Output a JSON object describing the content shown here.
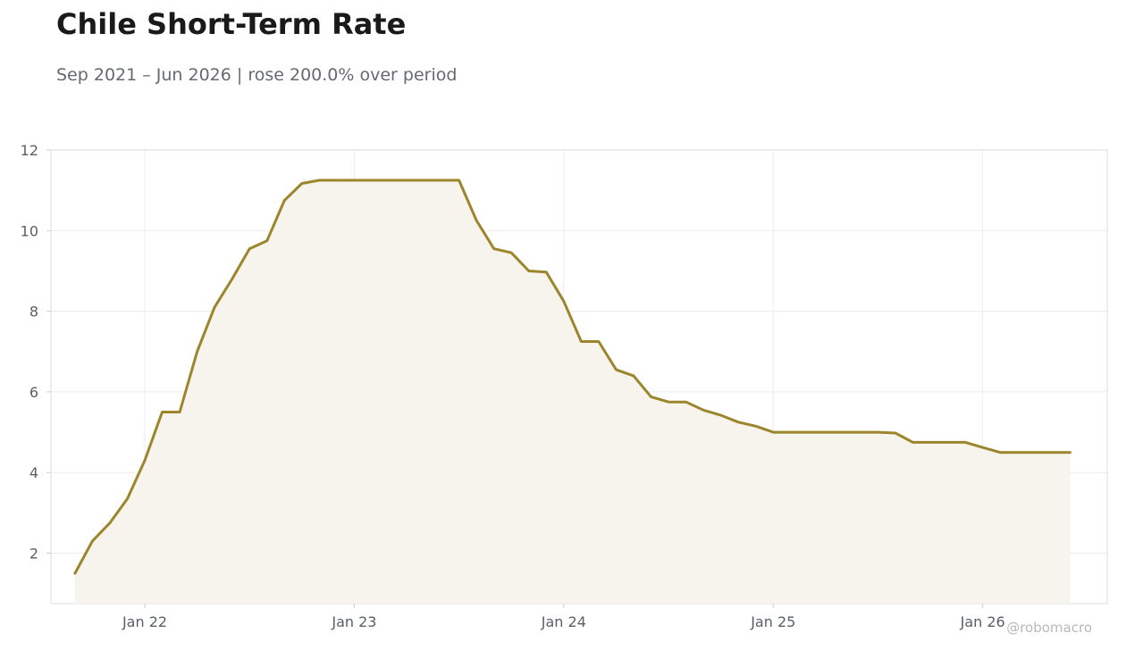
{
  "header": {
    "title": "Chile Short-Term Rate",
    "subtitle": "Sep 2021 – Jun 2026 | rose 200.0% over period"
  },
  "watermark": "@robomacro",
  "colors": {
    "line": "#9c852b",
    "fill": "#f7f4ee",
    "grid": "#ececec",
    "frame": "#dddddd",
    "tick_text": "#5a5e66"
  },
  "chart_data": {
    "type": "area",
    "title": "Chile Short-Term Rate",
    "subtitle": "Sep 2021 – Jun 2026 | rose 200.0% over period",
    "xlabel": "",
    "ylabel": "",
    "x_ticks": [
      {
        "label": "Jan 22",
        "date": "2022-01"
      },
      {
        "label": "Jan 23",
        "date": "2023-01"
      },
      {
        "label": "Jan 24",
        "date": "2024-01"
      },
      {
        "label": "Jan 25",
        "date": "2025-01"
      },
      {
        "label": "Jan 26",
        "date": "2026-01"
      }
    ],
    "y_ticks": [
      2,
      4,
      6,
      8,
      10,
      12
    ],
    "xlim": [
      "2021-07-20",
      "2026-08-05"
    ],
    "ylim": [
      0.75,
      12
    ],
    "grid": true,
    "series": [
      {
        "x": [
          "2021-09",
          "2021-10",
          "2021-11",
          "2021-12",
          "2022-01",
          "2022-02",
          "2022-03",
          "2022-04",
          "2022-05",
          "2022-06",
          "2022-07",
          "2022-08",
          "2022-09",
          "2022-10",
          "2022-11",
          "2022-12",
          "2023-01",
          "2023-02",
          "2023-03",
          "2023-04",
          "2023-05",
          "2023-06",
          "2023-07",
          "2023-08",
          "2023-09",
          "2023-10",
          "2023-11",
          "2023-12",
          "2024-01",
          "2024-02",
          "2024-03",
          "2024-04",
          "2024-05",
          "2024-06",
          "2024-07",
          "2024-08",
          "2024-09",
          "2024-10",
          "2024-11",
          "2024-12",
          "2025-01",
          "2025-02",
          "2025-03",
          "2025-04",
          "2025-05",
          "2025-06",
          "2025-07",
          "2025-08",
          "2025-09",
          "2025-10",
          "2025-11",
          "2025-12",
          "2026-01",
          "2026-02",
          "2026-03",
          "2026-04",
          "2026-05",
          "2026-06"
        ],
        "values": [
          1.5,
          2.3,
          2.75,
          3.35,
          4.3,
          5.5,
          5.5,
          7.0,
          8.1,
          8.8,
          9.55,
          9.75,
          10.75,
          11.17,
          11.25,
          11.25,
          11.25,
          11.25,
          11.25,
          11.25,
          11.25,
          11.25,
          11.25,
          10.25,
          9.55,
          9.45,
          9.0,
          8.97,
          8.25,
          7.25,
          7.25,
          6.55,
          6.4,
          5.88,
          5.75,
          5.75,
          5.55,
          5.42,
          5.25,
          5.15,
          5.0,
          5.0,
          5.0,
          5.0,
          5.0,
          5.0,
          5.0,
          4.98,
          4.75,
          4.75,
          4.75,
          4.75,
          4.62,
          4.5,
          4.5,
          4.5,
          4.5,
          4.5
        ]
      }
    ]
  }
}
